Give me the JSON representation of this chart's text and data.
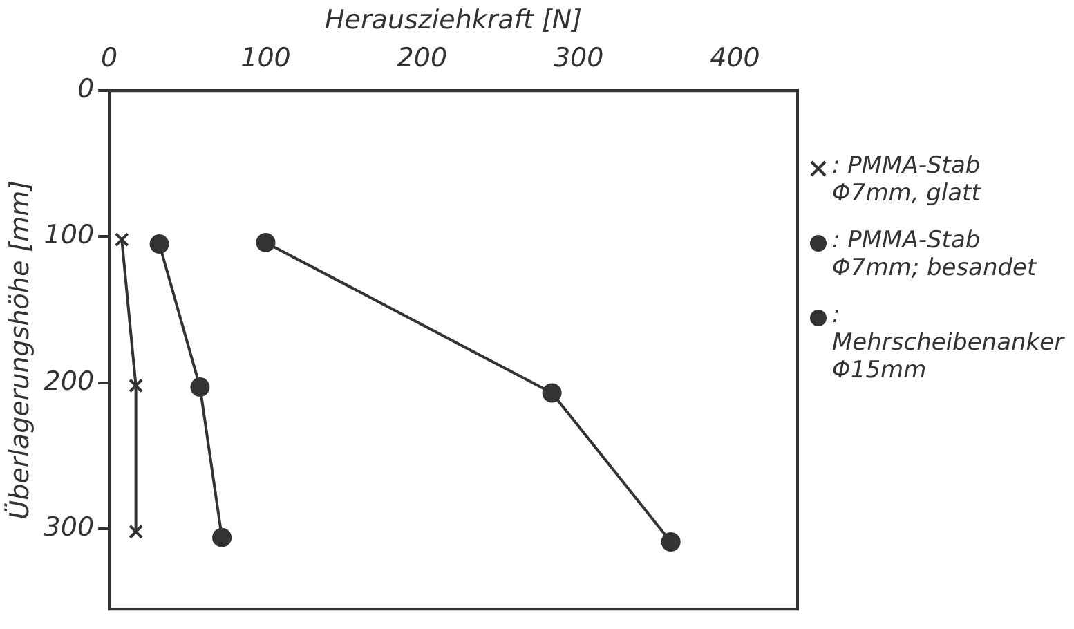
{
  "chart_data": {
    "type": "line",
    "xlabel": "Herausziehkraft [N]",
    "ylabel": "Überlagerungshöhe [mm]",
    "xlim": [
      0,
      440
    ],
    "xticks": [
      0,
      100,
      200,
      300,
      400
    ],
    "ylim": [
      355,
      0
    ],
    "yticks": [
      0,
      100,
      200,
      300
    ],
    "grid": false,
    "legend": "right",
    "line_style": "solid",
    "series": [
      {
        "name": ": PMMA-Stab Φ7mm, glatt",
        "color": "#333333",
        "marker": "cross",
        "x": [
          8,
          17,
          17
        ],
        "values": [
          102,
          202,
          302
        ]
      },
      {
        "name": ": PMMA-Stab Φ7mm; besandet",
        "color": "#333333",
        "marker": "circle",
        "x": [
          32,
          58,
          72
        ],
        "values": [
          105,
          203,
          306
        ]
      },
      {
        "name": ": Mehrscheibenanker Φ15mm",
        "color": "#333333",
        "marker": "circle",
        "x": [
          100,
          283,
          359
        ],
        "values": [
          104,
          207,
          309
        ]
      }
    ]
  }
}
